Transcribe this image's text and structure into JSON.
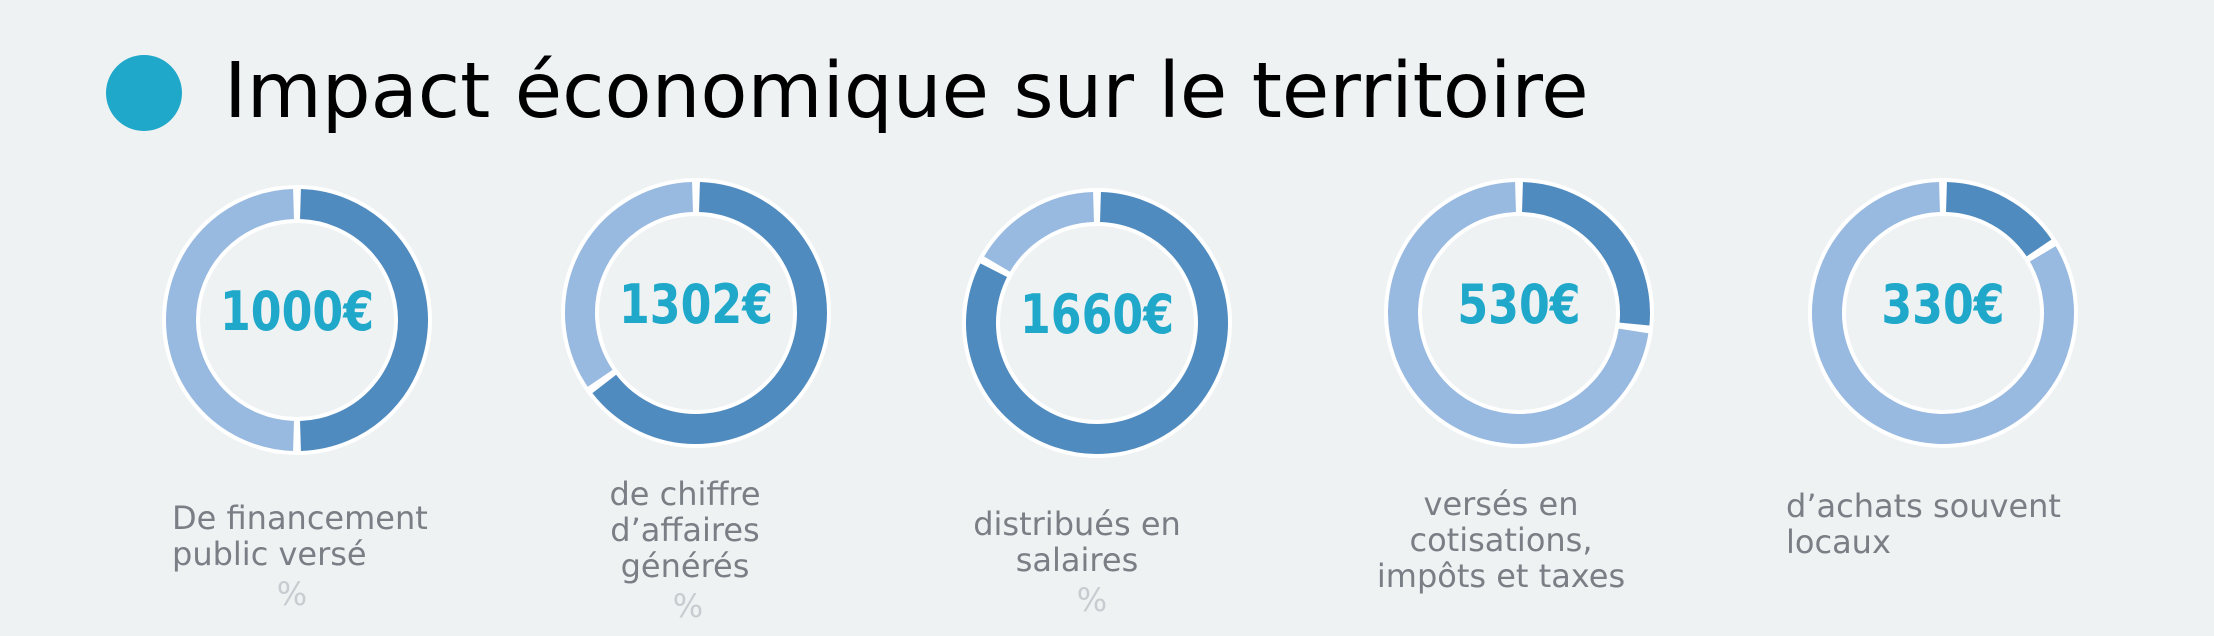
{
  "title": "Impact économique sur le territoire",
  "colors": {
    "accent": "#1fa8c9",
    "dark_segment": "#4f8bbf",
    "light_segment": "#98b9e0",
    "background": "#eef2f3",
    "label": "#7a7e85"
  },
  "chart_data": {
    "type": "donut",
    "items": [
      {
        "value_label": "1000€",
        "label_lines": [
          "De financement",
          "public versé"
        ],
        "percent_label": "%",
        "share": 50
      },
      {
        "value_label": "1302€",
        "label_lines": [
          "de chiffre",
          "d’affaires",
          "générés"
        ],
        "percent_label": "%",
        "share": 65
      },
      {
        "value_label": "1660€",
        "label_lines": [
          "distribués en",
          "salaires"
        ],
        "percent_label": "%",
        "share": 83
      },
      {
        "value_label": "530€",
        "label_lines": [
          "versés en",
          "cotisations,",
          "impôts et taxes"
        ],
        "share": 27
      },
      {
        "value_label": "330€",
        "label_lines": [
          "d’achats souvent",
          "locaux"
        ],
        "share": 16
      }
    ]
  }
}
